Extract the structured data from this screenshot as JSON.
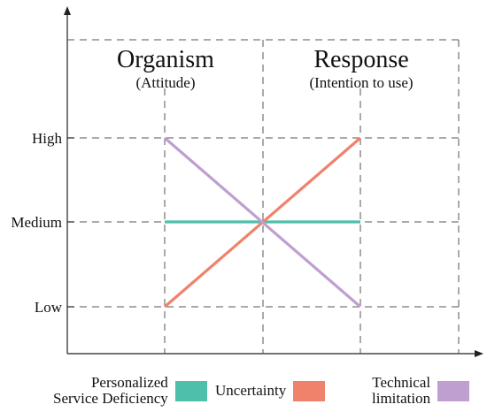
{
  "chart_data": {
    "type": "line",
    "title": "",
    "xlabel": "",
    "ylabel": "",
    "columns": [
      {
        "title": "Organism",
        "subtitle": "(Attitude)"
      },
      {
        "title": "Response",
        "subtitle": "(Intention to use)"
      }
    ],
    "y_categories": [
      "Low",
      "Medium",
      "High"
    ],
    "series": [
      {
        "name": "Personalized Service Deficiency",
        "color": "#4dbfab",
        "values": [
          "Medium",
          "Medium"
        ]
      },
      {
        "name": "Uncertainty",
        "color": "#f0826c",
        "values": [
          "Low",
          "High"
        ]
      },
      {
        "name": "Technical limitation",
        "color": "#bf9fd0",
        "values": [
          "High",
          "Low"
        ]
      }
    ],
    "grid": true,
    "legend_position": "bottom"
  },
  "legend": [
    {
      "line1": "Personalized",
      "line2": "Service Deficiency",
      "color": "#4dbfab"
    },
    {
      "line1": "Uncertainty",
      "line2": "",
      "color": "#f0826c"
    },
    {
      "line1": "Technical",
      "line2": "limitation",
      "color": "#bf9fd0"
    }
  ]
}
